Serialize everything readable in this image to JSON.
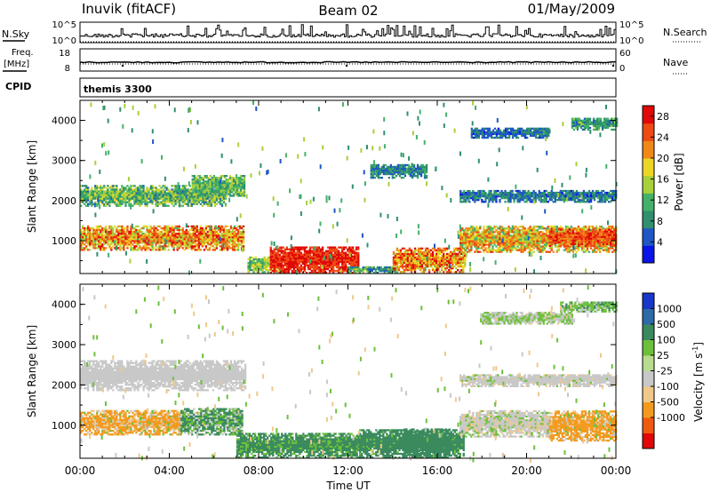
{
  "header": {
    "site": "Inuvik (fitACF)",
    "beam": "Beam 02",
    "date": "01/May/2009"
  },
  "strips": {
    "nsky_label": "N.Sky",
    "nsky_ticks": [
      "10^5",
      "10^0"
    ],
    "nsearch_label": "N.Search",
    "nsearch_ticks": [
      "10^5",
      "10^0"
    ],
    "freq_label_1": "Freq.",
    "freq_label_2": "[MHz]",
    "freq_ticks": [
      "18",
      "8"
    ],
    "nave_label": "Nave",
    "nave_ticks": [
      "60",
      "0"
    ],
    "cpid_label": "CPID",
    "cpid_value": "themis 3300"
  },
  "colors": {
    "power": [
      "#0a14e6",
      "#1f57c6",
      "#2f8f6e",
      "#43b16a",
      "#a8d03a",
      "#ecd625",
      "#f08818",
      "#ed4a14",
      "#e00808"
    ],
    "velocity": [
      "#e00808",
      "#ef5a10",
      "#f39a1e",
      "#f0c88a",
      "#c8c8c8",
      "#b8dc8e",
      "#6dc03a",
      "#3a8a5e",
      "#2c6aa8",
      "#1836c8"
    ]
  },
  "chart_data": [
    {
      "type": "heatmap",
      "panel": "power",
      "xlabel": "Time UT",
      "ylabel": "Slant Range [km]",
      "x_ticks": [
        "00:00",
        "04:00",
        "08:00",
        "12:00",
        "16:00",
        "20:00",
        "00:00"
      ],
      "xlim_hours": [
        0,
        24
      ],
      "y_ticks": [
        "1000",
        "2000",
        "3000",
        "4000"
      ],
      "ylim": [
        180,
        4500
      ],
      "colorbar": {
        "label": "Power [dB]",
        "ticks": [
          "4",
          "8",
          "12",
          "16",
          "20",
          "24",
          "28"
        ],
        "range": [
          0,
          30
        ]
      },
      "regions": [
        {
          "t0": 0.0,
          "t1": 7.3,
          "r0": 750,
          "r1": 1350,
          "value": 21,
          "spread": 8
        },
        {
          "t0": 0.0,
          "t1": 6.5,
          "r0": 1850,
          "r1": 2350,
          "value": 12,
          "spread": 6
        },
        {
          "t0": 5.0,
          "t1": 7.4,
          "r0": 2100,
          "r1": 2600,
          "value": 12,
          "spread": 5
        },
        {
          "t0": 7.5,
          "t1": 9.0,
          "r0": 200,
          "r1": 600,
          "value": 14,
          "spread": 6
        },
        {
          "t0": 8.5,
          "t1": 12.5,
          "r0": 180,
          "r1": 850,
          "value": 27,
          "spread": 3
        },
        {
          "t0": 12.0,
          "t1": 14.2,
          "r0": 180,
          "r1": 350,
          "value": 10,
          "spread": 6
        },
        {
          "t0": 14.0,
          "t1": 17.2,
          "r0": 200,
          "r1": 800,
          "value": 22,
          "spread": 7
        },
        {
          "t0": 13.0,
          "t1": 15.5,
          "r0": 2550,
          "r1": 2900,
          "value": 8,
          "spread": 4
        },
        {
          "t0": 17.0,
          "t1": 24.0,
          "r0": 700,
          "r1": 1350,
          "value": 19,
          "spread": 8
        },
        {
          "t0": 21.0,
          "t1": 24.0,
          "r0": 850,
          "r1": 1300,
          "value": 25,
          "spread": 4
        },
        {
          "t0": 17.0,
          "t1": 24.0,
          "r0": 1950,
          "r1": 2250,
          "value": 7,
          "spread": 4
        },
        {
          "t0": 17.5,
          "t1": 21.0,
          "r0": 3550,
          "r1": 3800,
          "value": 6,
          "spread": 3
        },
        {
          "t0": 22.0,
          "t1": 24.0,
          "r0": 3750,
          "r1": 4050,
          "value": 10,
          "spread": 4
        }
      ]
    },
    {
      "type": "heatmap",
      "panel": "velocity",
      "xlabel": "Time UT",
      "ylabel": "Slant Range [km]",
      "x_ticks": [
        "00:00",
        "04:00",
        "08:00",
        "12:00",
        "16:00",
        "20:00",
        "00:00"
      ],
      "xlim_hours": [
        0,
        24
      ],
      "y_ticks": [
        "1000",
        "2000",
        "3000",
        "4000"
      ],
      "ylim": [
        180,
        4500
      ],
      "colorbar": {
        "label": "Velocity [m s^-1]",
        "ticks": [
          "1000",
          "500",
          "100",
          "25",
          "-25",
          "-100",
          "-500",
          "-1000"
        ]
      },
      "regions": [
        {
          "t0": 0.0,
          "t1": 4.5,
          "r0": 750,
          "r1": 1350,
          "value": -150,
          "spread": 200
        },
        {
          "t0": 4.5,
          "t1": 7.3,
          "r0": 750,
          "r1": 1400,
          "value": 120,
          "spread": 150
        },
        {
          "t0": 0.0,
          "t1": 7.4,
          "r0": 1850,
          "r1": 2600,
          "value": 0,
          "spread": 15
        },
        {
          "t0": 7.0,
          "t1": 12.5,
          "r0": 180,
          "r1": 800,
          "value": 150,
          "spread": 100
        },
        {
          "t0": 12.5,
          "t1": 17.2,
          "r0": 180,
          "r1": 900,
          "value": 200,
          "spread": 120
        },
        {
          "t0": 14.5,
          "t1": 16.5,
          "r0": 200,
          "r1": 900,
          "value": 180,
          "spread": 40
        },
        {
          "t0": 17.0,
          "t1": 21.0,
          "r0": 700,
          "r1": 1350,
          "value": 0,
          "spread": 40
        },
        {
          "t0": 21.0,
          "t1": 24.0,
          "r0": 600,
          "r1": 1350,
          "value": -200,
          "spread": 250
        },
        {
          "t0": 17.0,
          "t1": 24.0,
          "r0": 1950,
          "r1": 2250,
          "value": 0,
          "spread": 30
        },
        {
          "t0": 18.0,
          "t1": 22.0,
          "r0": 3500,
          "r1": 3800,
          "value": 20,
          "spread": 50
        },
        {
          "t0": 21.5,
          "t1": 24.0,
          "r0": 3800,
          "r1": 4050,
          "value": 60,
          "spread": 60
        }
      ]
    }
  ]
}
